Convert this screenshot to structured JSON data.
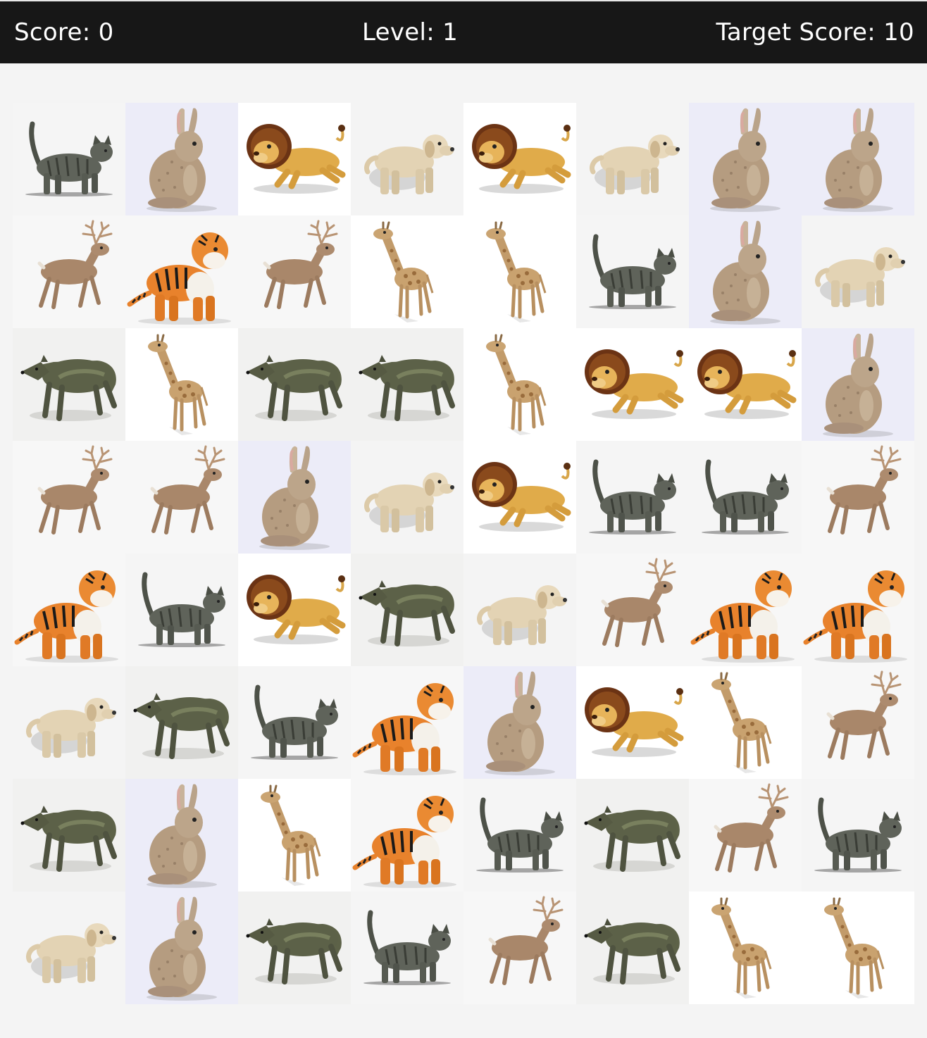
{
  "hud": {
    "score_label": "Score: 0",
    "level_label": "Level: 1",
    "target_label": "Target Score: 10"
  },
  "board": {
    "rows": 8,
    "cols": 8,
    "grid": [
      [
        "cat",
        "rabbit",
        "lion",
        "dog",
        "lion",
        "dog",
        "rabbit",
        "rabbit"
      ],
      [
        "deer",
        "tiger",
        "deer",
        "giraffe",
        "giraffe",
        "cat",
        "rabbit",
        "dog"
      ],
      [
        "wolf",
        "giraffe",
        "wolf",
        "wolf",
        "giraffe",
        "lion",
        "lion",
        "rabbit"
      ],
      [
        "deer",
        "deer",
        "rabbit",
        "dog",
        "lion",
        "cat",
        "cat",
        "deer"
      ],
      [
        "tiger",
        "cat",
        "lion",
        "wolf",
        "dog",
        "deer",
        "tiger",
        "tiger"
      ],
      [
        "dog",
        "wolf",
        "cat",
        "tiger",
        "rabbit",
        "lion",
        "giraffe",
        "deer"
      ],
      [
        "wolf",
        "rabbit",
        "giraffe",
        "tiger",
        "cat",
        "wolf",
        "deer",
        "cat"
      ],
      [
        "dog",
        "rabbit",
        "wolf",
        "cat",
        "deer",
        "wolf",
        "giraffe",
        "giraffe"
      ]
    ]
  },
  "tile_backgrounds": {
    "cat": "#f5f5f5",
    "rabbit": "#ececf8",
    "lion": "#ffffff",
    "dog": "#f4f4f4",
    "deer": "#f7f7f7",
    "tiger": "#f7f7f7",
    "giraffe": "#ffffff",
    "wolf": "#f1f1f0"
  },
  "colors": {
    "header_bg": "#171717",
    "header_text": "#ffffff",
    "page_bg": "#f4f4f4"
  }
}
